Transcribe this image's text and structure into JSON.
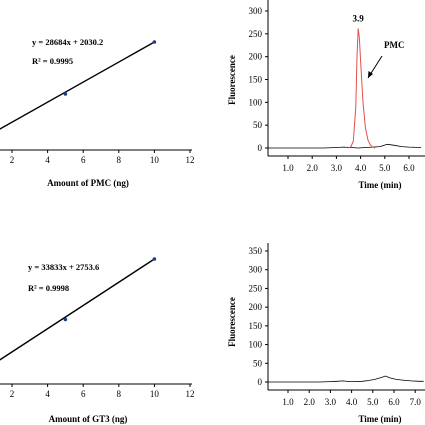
{
  "chart_data": [
    {
      "type": "line",
      "xlabel": "Amount of PMC (ng)",
      "ylabel": "",
      "xticks": [
        "2",
        "4",
        "6",
        "8",
        "10",
        "12"
      ],
      "xlim": [
        0,
        12
      ],
      "equation": "y = 28684x + 2030.2",
      "r2": "R² = 0.9995",
      "x": [
        0,
        5,
        10
      ],
      "y": [
        2030.2,
        145450.2,
        288870.2
      ],
      "points": [
        {
          "x": 5,
          "y": 145450.2
        },
        {
          "x": 10,
          "y": 288870.2
        }
      ],
      "ylim": [
        -20000,
        330000
      ],
      "grid": false,
      "point_color": "#1f3a8a"
    },
    {
      "type": "line",
      "xlabel": "Time (min)",
      "ylabel": "Fluorescence",
      "xticks": [
        "1.0",
        "2.0",
        "3.0",
        "4.0",
        "5.0",
        "6.0"
      ],
      "yticks": [
        "0",
        "50",
        "100",
        "150",
        "200",
        "250",
        "300"
      ],
      "xlim": [
        0,
        6.5
      ],
      "ylim": [
        0,
        320
      ],
      "grid": false,
      "peak_label": "3.9",
      "peak_annotation": "PMC",
      "peak_color": "#e0524a",
      "series": [
        {
          "x": [
            0,
            0.5,
            1,
            1.5,
            2,
            2.5,
            3,
            3.3,
            3.6,
            3.9,
            4.2,
            4.5,
            4.8,
            5.1,
            5.4,
            5.7,
            6,
            6.5
          ],
          "y": [
            0,
            0,
            0,
            0,
            0,
            0,
            1,
            2,
            1,
            0,
            1,
            2,
            3,
            8,
            6,
            3,
            2,
            1
          ]
        },
        {
          "x": [
            3.5,
            3.6,
            3.7,
            3.8,
            3.85,
            3.9,
            3.95,
            4.0,
            4.1,
            4.2,
            4.3,
            4.4,
            4.5,
            4.6
          ],
          "y": [
            0,
            3,
            15,
            90,
            200,
            262,
            240,
            190,
            100,
            45,
            18,
            7,
            2,
            0
          ]
        }
      ]
    },
    {
      "type": "line",
      "xlabel": "Amount of GT3 (ng)",
      "ylabel": "",
      "xticks": [
        "2",
        "4",
        "6",
        "8",
        "10",
        "12"
      ],
      "xlim": [
        0,
        12
      ],
      "equation": "y = 33833x + 2753.6",
      "r2": "R² = 0.9998",
      "x": [
        0,
        5,
        10
      ],
      "y": [
        2753.6,
        171918.6,
        341083.6
      ],
      "points": [
        {
          "x": 5,
          "y": 171918.6
        },
        {
          "x": 10,
          "y": 341083.6
        }
      ],
      "ylim": [
        -20000,
        390000
      ],
      "grid": false,
      "point_color": "#1f3a8a"
    },
    {
      "type": "line",
      "xlabel": "Time (min)",
      "ylabel": "Fluorescence",
      "xticks": [
        "1.0",
        "2.0",
        "3.0",
        "4.0",
        "5.0",
        "6.0",
        "7.0"
      ],
      "yticks": [
        "0",
        "50",
        "100",
        "150",
        "200",
        "250",
        "300",
        "350"
      ],
      "xlim": [
        0,
        7.4
      ],
      "ylim": [
        0,
        375
      ],
      "grid": false,
      "series": [
        {
          "x": [
            0,
            0.5,
            1,
            1.5,
            2,
            2.5,
            3,
            3.3,
            3.6,
            3.9,
            4.2,
            4.5,
            4.8,
            5.1,
            5.4,
            5.6,
            5.8,
            6.1,
            6.4,
            6.8,
            7.2,
            7.4
          ],
          "y": [
            0,
            0,
            0,
            0,
            0,
            0,
            1,
            2,
            3,
            1,
            1,
            2,
            4,
            7,
            12,
            16,
            11,
            7,
            5,
            3,
            2,
            2
          ]
        }
      ]
    }
  ]
}
